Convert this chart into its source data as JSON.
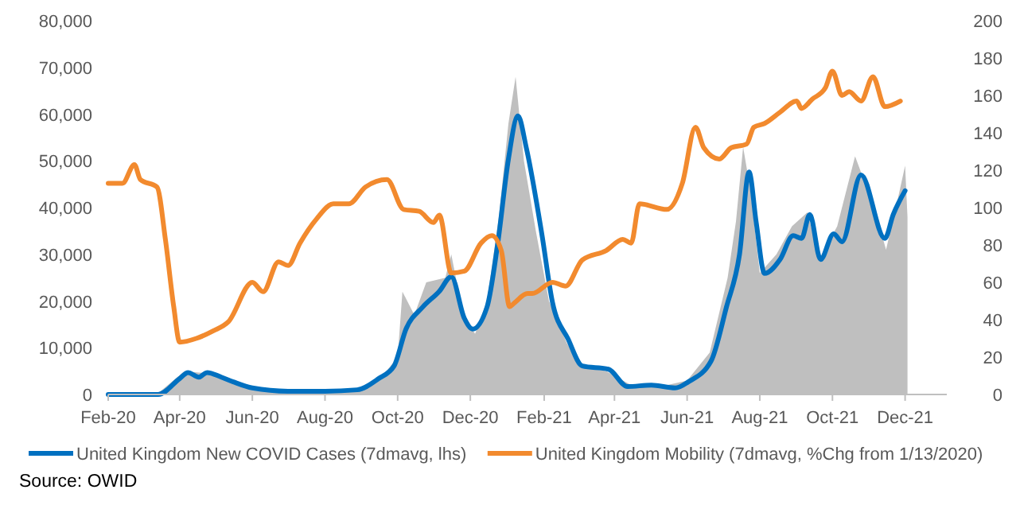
{
  "chart_data": {
    "type": "line",
    "xlim": [
      "2020-02-01",
      "2022-01-05"
    ],
    "xticks": [
      {
        "value": "2020-02-01",
        "label": "Feb-20"
      },
      {
        "value": "2020-04-01",
        "label": "Apr-20"
      },
      {
        "value": "2020-06-01",
        "label": "Jun-20"
      },
      {
        "value": "2020-08-01",
        "label": "Aug-20"
      },
      {
        "value": "2020-10-01",
        "label": "Oct-20"
      },
      {
        "value": "2020-12-01",
        "label": "Dec-20"
      },
      {
        "value": "2021-02-01",
        "label": "Feb-21"
      },
      {
        "value": "2021-04-01",
        "label": "Apr-21"
      },
      {
        "value": "2021-06-01",
        "label": "Jun-21"
      },
      {
        "value": "2021-08-01",
        "label": "Aug-21"
      },
      {
        "value": "2021-10-01",
        "label": "Oct-21"
      },
      {
        "value": "2021-12-01",
        "label": "Dec-21"
      }
    ],
    "ylim": [
      0,
      80000
    ],
    "yticks": [
      {
        "value": 0,
        "label": "0"
      },
      {
        "value": 10000,
        "label": "10,000"
      },
      {
        "value": 20000,
        "label": "20,000"
      },
      {
        "value": 30000,
        "label": "30,000"
      },
      {
        "value": 40000,
        "label": "40,000"
      },
      {
        "value": 50000,
        "label": "50,000"
      },
      {
        "value": 60000,
        "label": "60,000"
      },
      {
        "value": 70000,
        "label": "70,000"
      },
      {
        "value": 80000,
        "label": "80,000"
      }
    ],
    "y2lim": [
      0,
      200
    ],
    "y2ticks": [
      0,
      20,
      40,
      60,
      80,
      100,
      120,
      140,
      160,
      180,
      200
    ],
    "grid": false,
    "legend": "bottom",
    "line_style": "solid",
    "marker": "none",
    "series": [
      {
        "type": "area",
        "color": "#bfbfbf",
        "x": [
          "2020-02-01",
          "2020-03-15",
          "2020-04-05",
          "2020-04-25",
          "2020-05-15",
          "2020-06-01",
          "2020-07-01",
          "2020-08-01",
          "2020-09-01",
          "2020-09-20",
          "2020-10-01",
          "2020-10-05",
          "2020-10-15",
          "2020-10-25",
          "2020-11-10",
          "2020-11-15",
          "2020-11-25",
          "2020-12-05",
          "2020-12-15",
          "2020-12-25",
          "2021-01-02",
          "2021-01-08",
          "2021-01-15",
          "2021-01-25",
          "2021-02-05",
          "2021-02-20",
          "2021-03-05",
          "2021-03-25",
          "2021-04-15",
          "2021-05-15",
          "2021-06-01",
          "2021-06-20",
          "2021-07-05",
          "2021-07-12",
          "2021-07-18",
          "2021-07-24",
          "2021-08-01",
          "2021-08-15",
          "2021-08-28",
          "2021-09-10",
          "2021-09-20",
          "2021-10-05",
          "2021-10-20",
          "2021-11-05",
          "2021-11-15",
          "2021-11-25",
          "2021-12-01",
          "2021-12-03"
        ],
        "values": [
          0,
          500,
          5000,
          4500,
          3000,
          1500,
          700,
          800,
          1500,
          4500,
          8000,
          22000,
          17000,
          24000,
          25000,
          30000,
          17000,
          13000,
          20000,
          38000,
          58000,
          68000,
          50000,
          35000,
          20000,
          11000,
          6000,
          5000,
          2000,
          2000,
          3000,
          9000,
          25000,
          37000,
          53000,
          44000,
          26000,
          30000,
          36000,
          39000,
          29000,
          36000,
          51000,
          40000,
          31000,
          42000,
          49000,
          38000
        ]
      },
      {
        "name": "United Kingdom New COVID Cases (7dmavg, lhs)",
        "color": "#0070c0",
        "x": [
          "2020-02-01",
          "2020-03-14",
          "2020-04-01",
          "2020-04-08",
          "2020-04-17",
          "2020-04-24",
          "2020-05-06",
          "2020-05-16",
          "2020-06-01",
          "2020-07-01",
          "2020-08-01",
          "2020-08-28",
          "2020-09-15",
          "2020-09-28",
          "2020-10-08",
          "2020-10-22",
          "2020-11-05",
          "2020-11-15",
          "2020-11-26",
          "2020-12-03",
          "2020-12-15",
          "2020-12-24",
          "2021-01-02",
          "2021-01-10",
          "2021-01-17",
          "2021-01-30",
          "2021-02-08",
          "2021-02-21",
          "2021-03-05",
          "2021-03-27",
          "2021-04-12",
          "2021-05-02",
          "2021-05-22",
          "2021-06-02",
          "2021-06-21",
          "2021-07-04",
          "2021-07-15",
          "2021-07-23",
          "2021-07-29",
          "2021-08-05",
          "2021-08-18",
          "2021-08-29",
          "2021-09-05",
          "2021-09-12",
          "2021-09-21",
          "2021-10-02",
          "2021-10-09",
          "2021-10-25",
          "2021-11-14",
          "2021-11-21",
          "2021-12-01"
        ],
        "values": [
          0,
          0,
          3400,
          4700,
          3700,
          4700,
          3700,
          2700,
          1400,
          700,
          700,
          1000,
          3400,
          6100,
          14000,
          18700,
          22100,
          25200,
          16300,
          14000,
          18700,
          32300,
          50400,
          59600,
          52800,
          34400,
          19700,
          11900,
          6100,
          5400,
          1700,
          2000,
          1400,
          2700,
          7100,
          18700,
          30000,
          47600,
          36800,
          25900,
          28900,
          34000,
          33400,
          38500,
          28900,
          34400,
          32700,
          47000,
          33400,
          38500,
          43600
        ]
      },
      {
        "name": "United Kingdom Mobility (7dmavg, %Chg from 1/13/2020)",
        "color": "#f28a2e",
        "axis": "y2",
        "x": [
          "2020-02-01",
          "2020-02-13",
          "2020-02-23",
          "2020-02-28",
          "2020-03-13",
          "2020-03-20",
          "2020-03-27",
          "2020-04-01",
          "2020-04-15",
          "2020-04-29",
          "2020-05-12",
          "2020-06-01",
          "2020-06-10",
          "2020-06-23",
          "2020-07-01",
          "2020-07-11",
          "2020-07-25",
          "2020-08-08",
          "2020-08-21",
          "2020-09-04",
          "2020-09-22",
          "2020-10-06",
          "2020-10-19",
          "2020-10-31",
          "2020-11-05",
          "2020-11-15",
          "2020-11-26",
          "2020-12-10",
          "2020-12-19",
          "2020-12-27",
          "2021-01-03",
          "2021-01-07",
          "2021-01-18",
          "2021-01-22",
          "2021-02-08",
          "2021-02-19",
          "2021-03-05",
          "2021-03-25",
          "2021-04-08",
          "2021-04-15",
          "2021-04-22",
          "2021-05-15",
          "2021-05-28",
          "2021-06-08",
          "2021-06-15",
          "2021-06-28",
          "2021-07-08",
          "2021-07-21",
          "2021-07-27",
          "2021-08-05",
          "2021-08-18",
          "2021-09-01",
          "2021-09-05",
          "2021-09-14",
          "2021-09-25",
          "2021-10-01",
          "2021-10-09",
          "2021-10-15",
          "2021-10-25",
          "2021-11-04",
          "2021-11-14",
          "2021-11-27"
        ],
        "values": [
          113,
          113,
          123,
          115,
          111,
          83,
          47,
          28,
          30,
          34,
          39,
          60,
          55,
          71,
          69,
          81,
          94,
          102,
          102,
          111,
          115,
          99,
          98,
          92,
          96,
          65,
          66,
          81,
          85,
          77,
          47,
          49,
          54,
          54,
          60,
          58,
          72,
          77,
          83,
          81,
          102,
          99,
          113,
          143,
          132,
          126,
          132,
          134,
          143,
          145,
          151,
          157,
          153,
          158,
          164,
          173,
          160,
          162,
          157,
          170,
          154,
          157
        ]
      }
    ],
    "annotations": [
      "Source: OWID"
    ]
  }
}
